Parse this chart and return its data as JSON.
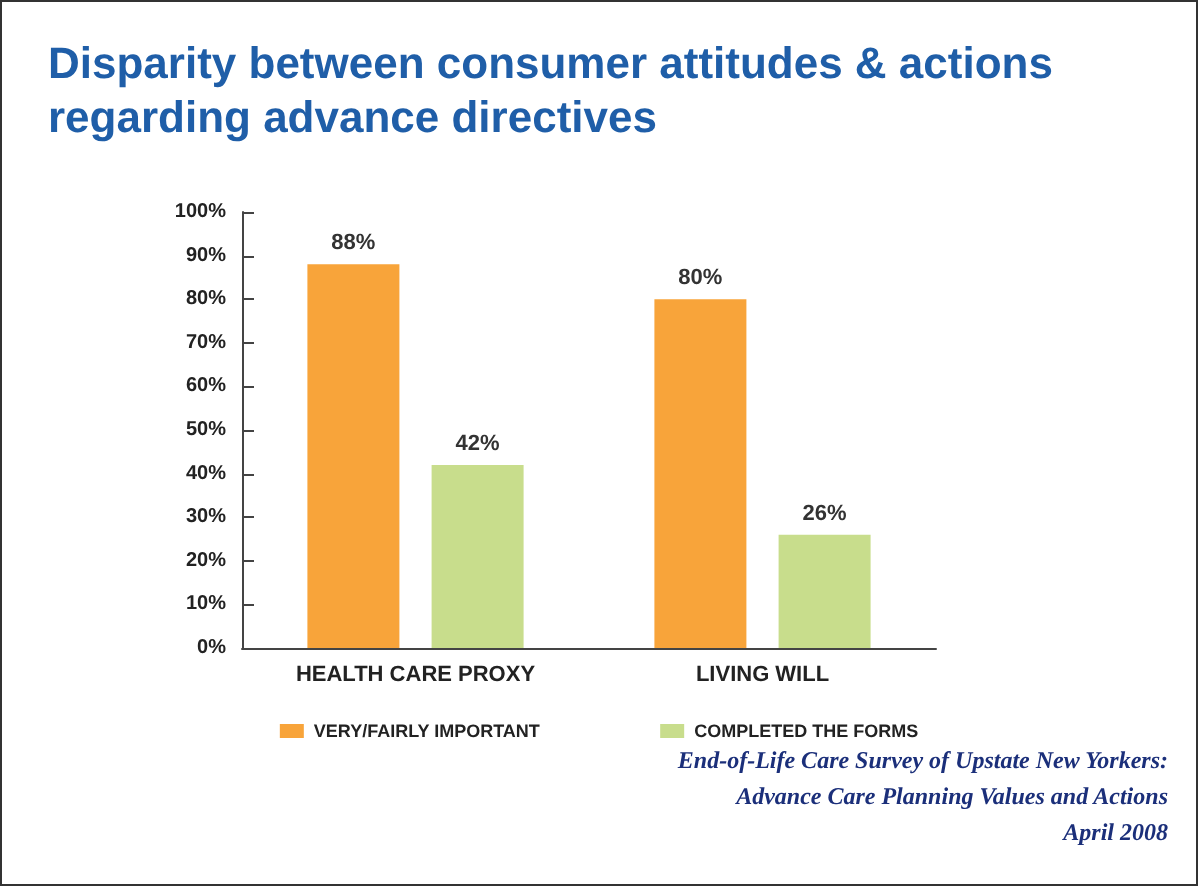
{
  "chart_data": {
    "type": "bar",
    "title": "Disparity between consumer attitudes & actions regarding advance directives",
    "categories": [
      "HEALTH CARE PROXY",
      "LIVING WILL"
    ],
    "series": [
      {
        "name": "VERY/FAIRLY IMPORTANT",
        "color": "#f8a43a",
        "values": [
          88,
          80
        ],
        "value_labels": [
          "88%",
          "80%"
        ]
      },
      {
        "name": "COMPLETED THE FORMS",
        "color": "#c8dd8c",
        "values": [
          42,
          26
        ],
        "value_labels": [
          "42%",
          "26%"
        ]
      }
    ],
    "ylim": [
      0,
      100
    ],
    "yticks": [
      {
        "value": 0,
        "label": "0%"
      },
      {
        "value": 10,
        "label": "10%"
      },
      {
        "value": 20,
        "label": "20%"
      },
      {
        "value": 30,
        "label": "30%"
      },
      {
        "value": 40,
        "label": "40%"
      },
      {
        "value": 50,
        "label": "50%"
      },
      {
        "value": 60,
        "label": "60%"
      },
      {
        "value": 70,
        "label": "70%"
      },
      {
        "value": 80,
        "label": "80%"
      },
      {
        "value": 90,
        "label": "90%"
      },
      {
        "value": 100,
        "label": "100%"
      }
    ],
    "grid": false,
    "legend": "bottom",
    "annotations": [
      "End-of-Life Care Survey of Upstate New Yorkers:",
      "Advance Care Planning Values and Actions",
      "April 2008"
    ]
  }
}
